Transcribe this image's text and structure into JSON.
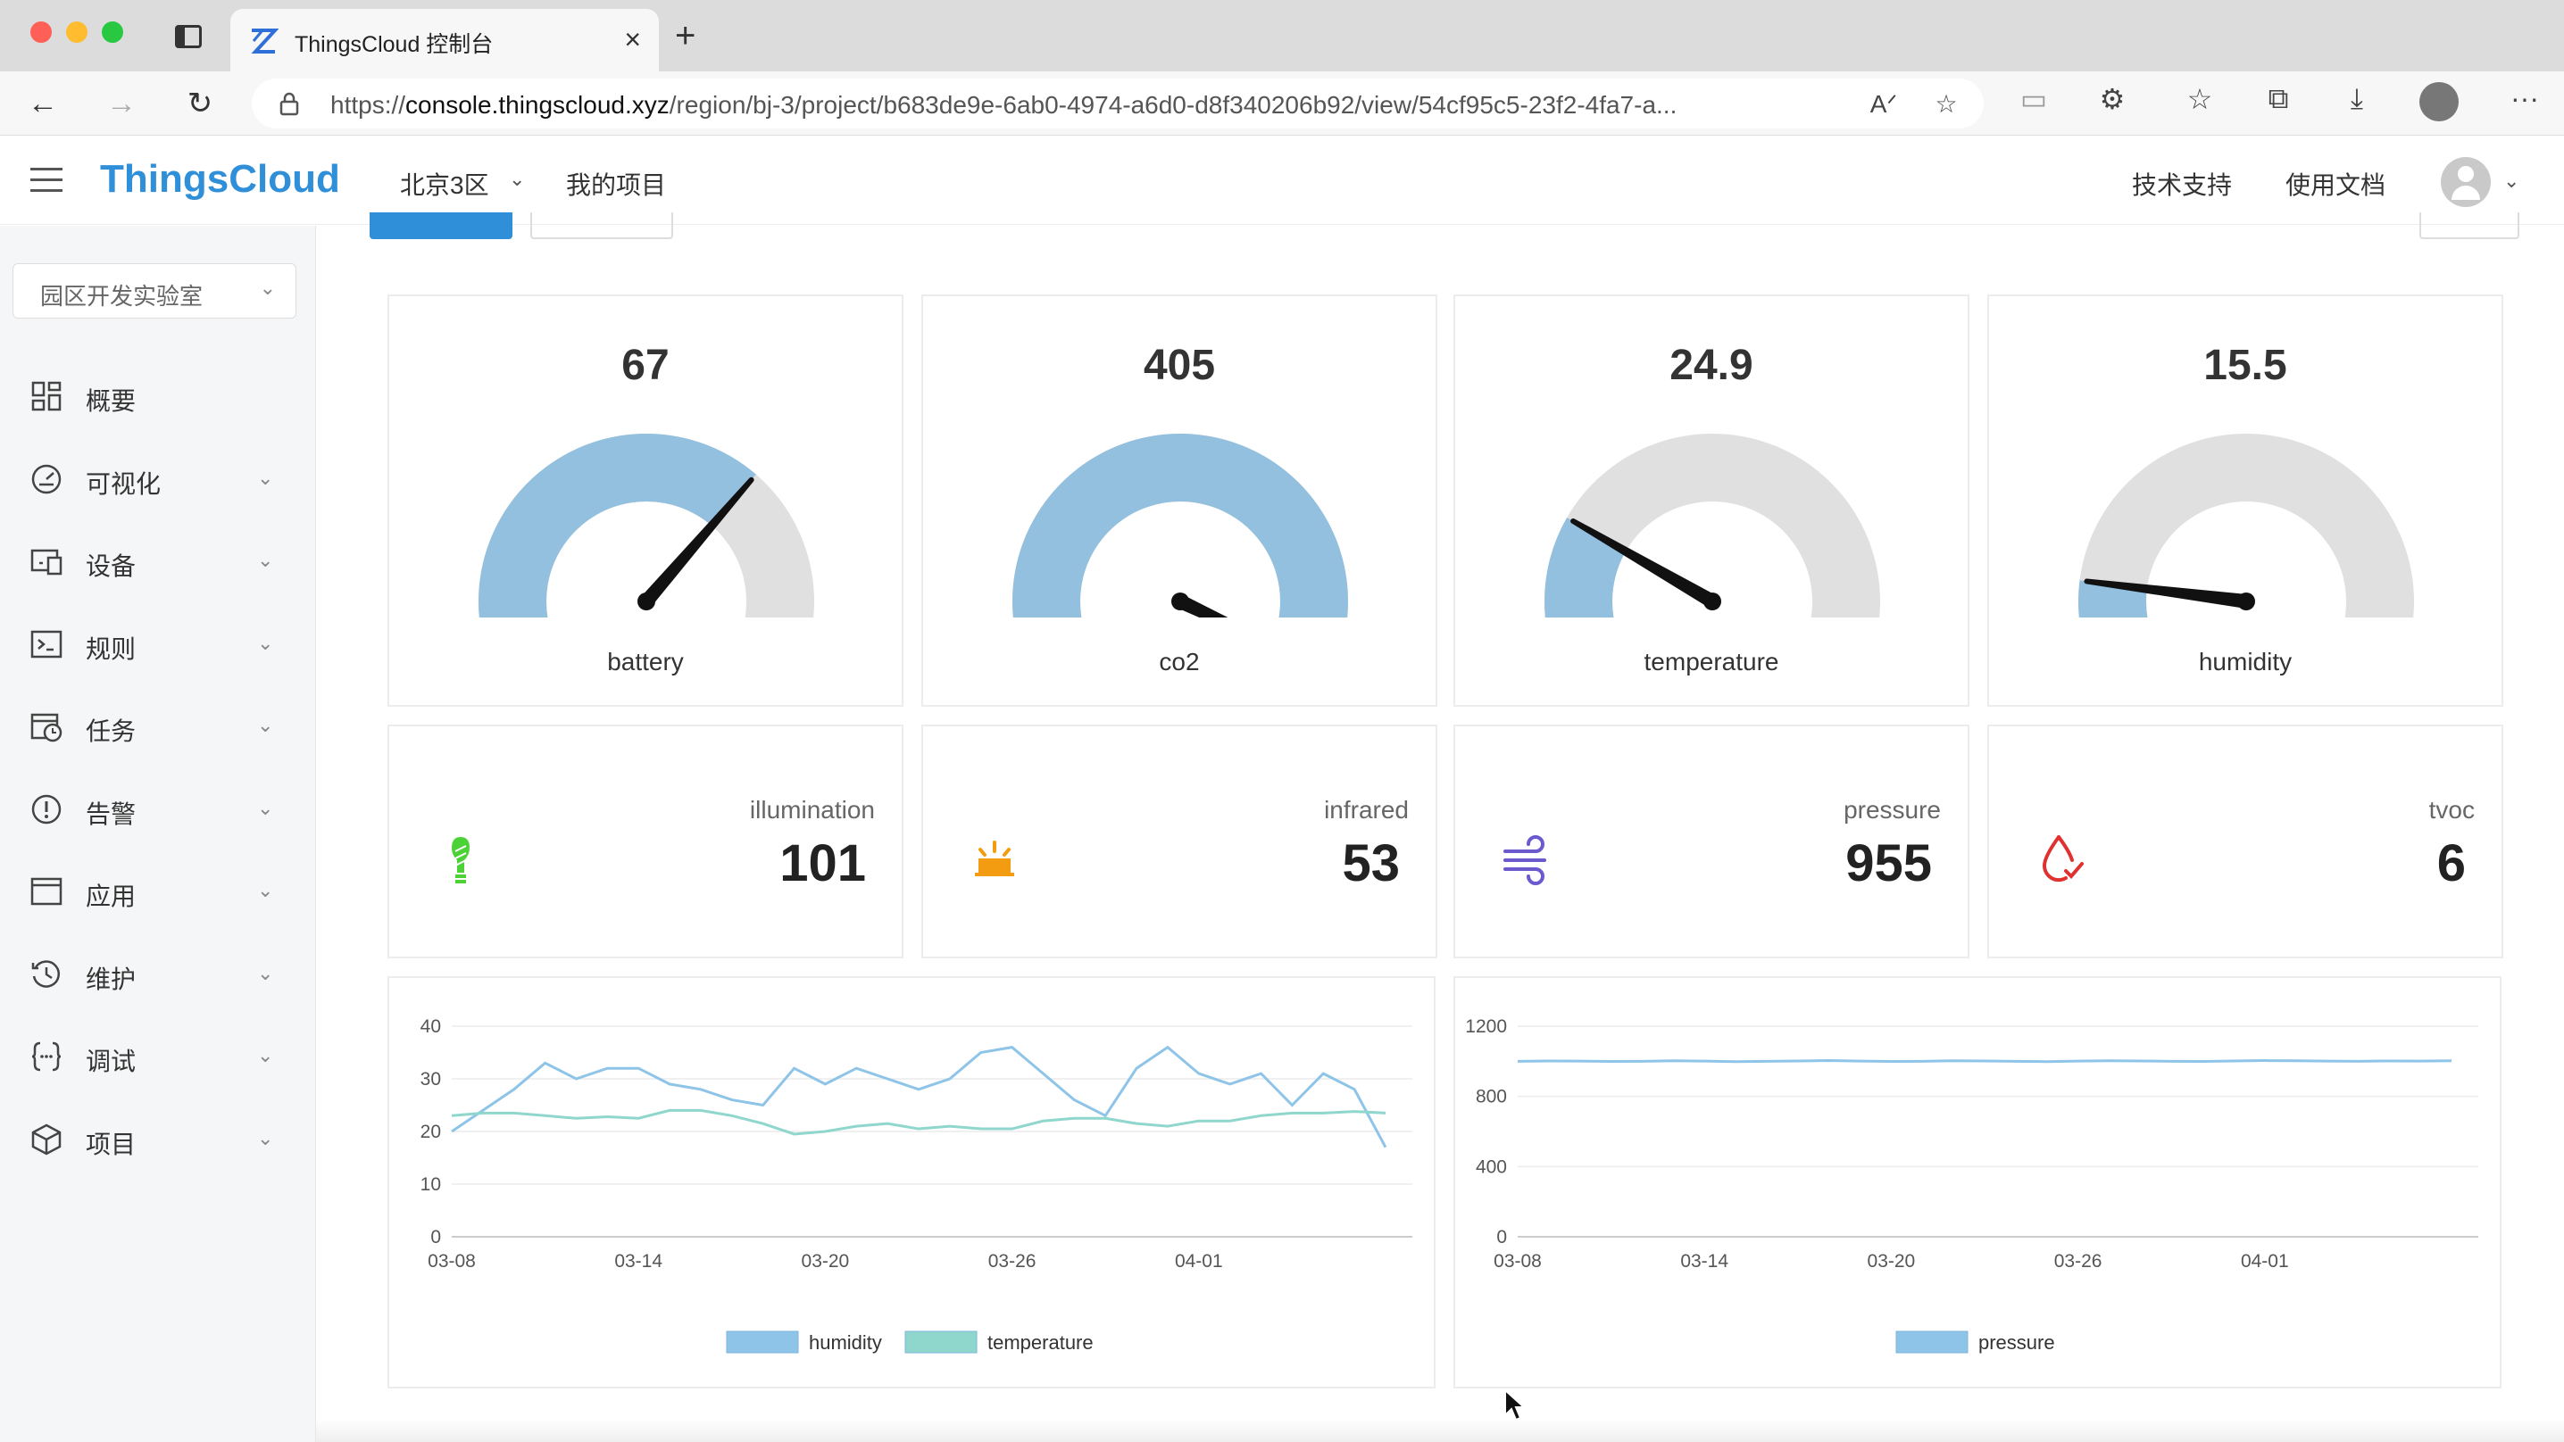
{
  "browser": {
    "tab_title": "ThingsCloud 控制台",
    "url_prefix": "https://",
    "url_host": "console.thingscloud.xyz",
    "url_path": "/region/bj-3/project/b683de9e-6ab0-4974-a6d0-d8f340206b92/view/54cf95c5-23f2-4fa7-a..."
  },
  "header": {
    "brand": "ThingsCloud",
    "region": "北京3区",
    "my_projects": "我的项目",
    "tech_support": "技术支持",
    "docs": "使用文档"
  },
  "sidebar": {
    "project": "园区开发实验室",
    "items": [
      {
        "label": "概要",
        "icon": "dashboard-icon",
        "has_children": false
      },
      {
        "label": "可视化",
        "icon": "gauge-icon",
        "has_children": true
      },
      {
        "label": "设备",
        "icon": "devices-icon",
        "has_children": true
      },
      {
        "label": "规则",
        "icon": "terminal-icon",
        "has_children": true
      },
      {
        "label": "任务",
        "icon": "calendar-clock-icon",
        "has_children": true
      },
      {
        "label": "告警",
        "icon": "alert-icon",
        "has_children": true
      },
      {
        "label": "应用",
        "icon": "window-icon",
        "has_children": true
      },
      {
        "label": "维护",
        "icon": "history-icon",
        "has_children": true
      },
      {
        "label": "调试",
        "icon": "braces-icon",
        "has_children": true
      },
      {
        "label": "项目",
        "icon": "cube-icon",
        "has_children": true
      }
    ]
  },
  "gauges": [
    {
      "label": "battery",
      "value": "67",
      "fraction": 0.67
    },
    {
      "label": "co2",
      "value": "405",
      "fraction": 0.98
    },
    {
      "label": "temperature",
      "value": "24.9",
      "fraction": 0.25
    },
    {
      "label": "humidity",
      "value": "15.5",
      "fraction": 0.155
    }
  ],
  "stats": [
    {
      "label": "illumination",
      "value": "101",
      "icon": "lightbulb-icon",
      "color": "#4cd137"
    },
    {
      "label": "infrared",
      "value": "53",
      "icon": "sunrise-icon",
      "color": "#f39c12"
    },
    {
      "label": "pressure",
      "value": "955",
      "icon": "wind-icon",
      "color": "#6a5acd"
    },
    {
      "label": "tvoc",
      "value": "6",
      "icon": "drop-check-icon",
      "color": "#e03131"
    }
  ],
  "chart_data": [
    {
      "type": "line",
      "x_ticks": [
        "03-08",
        "03-14",
        "03-20",
        "03-26",
        "04-01"
      ],
      "ylim": [
        0,
        40
      ],
      "y_ticks": [
        0,
        10,
        20,
        30,
        40
      ],
      "grid": true,
      "legend_position": "bottom",
      "series": [
        {
          "name": "humidity",
          "color": "#8ec4e8",
          "values": [
            20,
            24,
            28,
            33,
            30,
            32,
            32,
            29,
            28,
            26,
            25,
            32,
            29,
            32,
            30,
            28,
            30,
            35,
            36,
            31,
            26,
            23,
            32,
            36,
            31,
            29,
            31,
            25,
            31,
            28,
            17
          ]
        },
        {
          "name": "temperature",
          "color": "#8fd6cd",
          "values": [
            23,
            23.5,
            23.5,
            23,
            22.5,
            22.8,
            22.5,
            24,
            24,
            23,
            21.5,
            19.5,
            20,
            21,
            21.5,
            20.5,
            21,
            20.5,
            20.5,
            22,
            22.5,
            22.5,
            21.5,
            21,
            22,
            22,
            23,
            23.5,
            23.5,
            23.8,
            23.5
          ]
        }
      ]
    },
    {
      "type": "line",
      "x_ticks": [
        "03-08",
        "03-14",
        "03-20",
        "03-26",
        "04-01"
      ],
      "ylim": [
        0,
        1200
      ],
      "y_ticks": [
        0,
        400,
        800,
        1200
      ],
      "grid": true,
      "legend_position": "bottom",
      "series": [
        {
          "name": "pressure",
          "color": "#8ec4e8",
          "values": [
            1000,
            1002,
            1001,
            999,
            1000,
            1003,
            1001,
            998,
            1000,
            1002,
            1004,
            1001,
            999,
            1000,
            1003,
            1002,
            1000,
            998,
            1001,
            1003,
            1002,
            1000,
            999,
            1002,
            1004,
            1003,
            1001,
            1000,
            1002,
            1001,
            1003
          ]
        }
      ]
    }
  ]
}
